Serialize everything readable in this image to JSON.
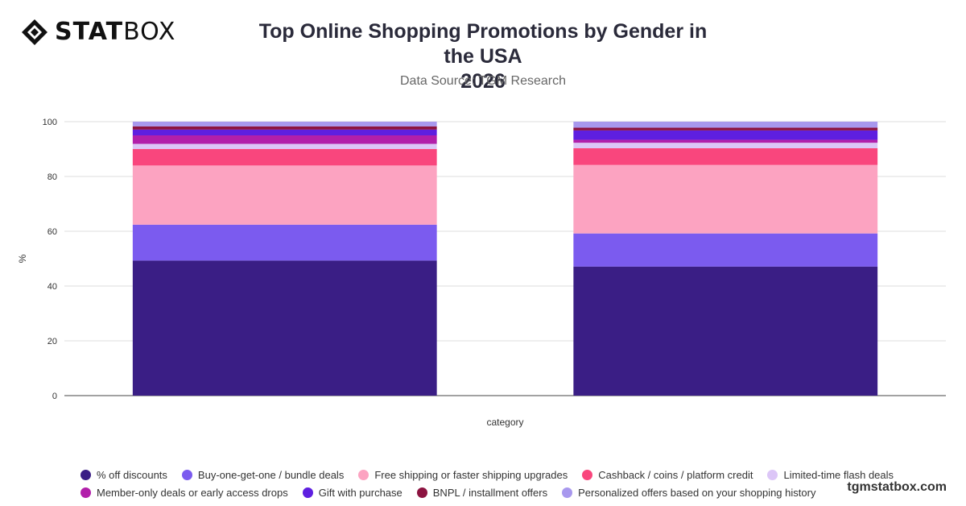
{
  "brand": {
    "logo_bold": "STAT",
    "logo_light": "BOX",
    "website": "tgmstatbox.com"
  },
  "header": {
    "title_line1": "Top Online Shopping Promotions by Gender in the USA",
    "title_line2": "2026",
    "subtitle": "Data Source: TGM Research"
  },
  "chart_data": {
    "type": "bar",
    "stacked": true,
    "xlabel": "category",
    "ylabel": "%",
    "ylim": [
      0,
      100
    ],
    "yticks": [
      0,
      20,
      40,
      60,
      80,
      100
    ],
    "grid": true,
    "legend_position": "bottom",
    "categories": [
      "",
      ""
    ],
    "series": [
      {
        "name": "% off discounts",
        "color": "#3a1e85",
        "values": [
          49.3,
          47.1
        ]
      },
      {
        "name": "Buy-one-get-one / bundle deals",
        "color": "#7b5bef",
        "values": [
          13.1,
          12.1
        ]
      },
      {
        "name": "Free shipping or faster shipping upgrades",
        "color": "#fca3c1",
        "values": [
          21.6,
          25.0
        ]
      },
      {
        "name": "Cashback / coins / platform credit",
        "color": "#f9467d",
        "values": [
          6.0,
          6.1
        ]
      },
      {
        "name": "Limited-time flash deals",
        "color": "#dcc6f7",
        "values": [
          1.9,
          2.0
        ]
      },
      {
        "name": "Member-only deals or early access drops",
        "color": "#b21faa",
        "values": [
          3.1,
          1.1
        ]
      },
      {
        "name": "Gift with purchase",
        "color": "#5e1fe0",
        "values": [
          2.1,
          3.4
        ]
      },
      {
        "name": "BNPL / installment offers",
        "color": "#8c1340",
        "values": [
          1.2,
          1.0
        ]
      },
      {
        "name": "Personalized offers based on your shopping history",
        "color": "#a898ee",
        "values": [
          1.7,
          2.2
        ]
      }
    ]
  }
}
